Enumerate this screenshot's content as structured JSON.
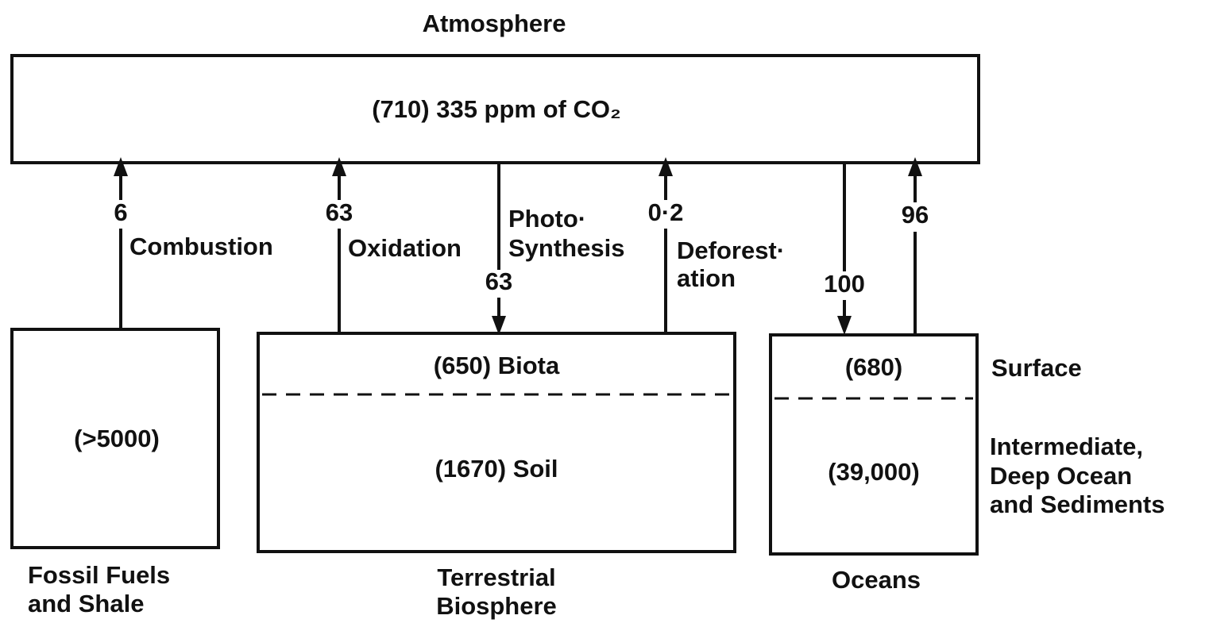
{
  "title": "Atmosphere",
  "atmosphere": {
    "content": "(710) 335 ppm of CO₂"
  },
  "flows": [
    {
      "value": "6",
      "label": [
        "Combustion"
      ]
    },
    {
      "value": "63",
      "label": [
        "Oxidation"
      ]
    },
    {
      "value": "63",
      "label": [
        "Photo·",
        "Synthesis"
      ]
    },
    {
      "value": "0·2",
      "label": [
        "Deforest·",
        "ation"
      ]
    },
    {
      "value": "100"
    },
    {
      "value": "96"
    }
  ],
  "fossil": {
    "content": "(>5000)",
    "caption": [
      "Fossil Fuels",
      "and Shale"
    ]
  },
  "terrestrial": {
    "upper": "(650) Biota",
    "lower": "(1670) Soil",
    "caption": [
      "Terrestrial",
      "Biosphere"
    ]
  },
  "oceans": {
    "upper": "(680)",
    "lower": "(39,000)",
    "caption": [
      "Oceans"
    ],
    "upper_label": "Surface",
    "lower_label": [
      "Intermediate,",
      "Deep Ocean",
      "and Sediments"
    ]
  }
}
